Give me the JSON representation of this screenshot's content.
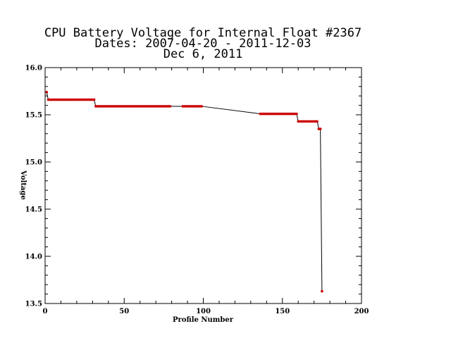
{
  "chart_data": {
    "type": "line",
    "title_lines": [
      "CPU Battery Voltage for Internal Float #2367",
      "Dates:  2007-04-20 -  2011-12-03",
      "Dec  6, 2011"
    ],
    "xlabel": "Profile Number",
    "ylabel": "Voltage",
    "xlim": [
      0,
      200
    ],
    "ylim": [
      13.5,
      16.0
    ],
    "x_ticks": [
      0,
      50,
      100,
      150,
      200
    ],
    "x_tick_labels": [
      "0",
      "50",
      "100",
      "150",
      "200"
    ],
    "y_ticks": [
      13.5,
      14.0,
      14.5,
      15.0,
      15.5,
      16.0
    ],
    "y_tick_labels": [
      "13.5",
      "14.0",
      "14.5",
      "15.0",
      "15.5",
      "16.0"
    ],
    "line_color": "#000000",
    "marker_color": "#cc0000",
    "series": [
      {
        "segments": [
          {
            "y": 15.74,
            "x_from": 1,
            "x_to": 1
          },
          {
            "y": 15.66,
            "x_from": 2,
            "x_to": 31
          },
          {
            "y": 15.59,
            "x_from": 32,
            "x_to": 79
          },
          {
            "y": 15.59,
            "x_from": 87,
            "x_to": 99
          },
          {
            "y": 15.51,
            "x_from": 136,
            "x_to": 159
          },
          {
            "y": 15.43,
            "x_from": 160,
            "x_to": 172
          },
          {
            "y": 15.35,
            "x_from": 173,
            "x_to": 174
          },
          {
            "y": 13.63,
            "x_from": 175,
            "x_to": 175
          }
        ]
      }
    ]
  }
}
